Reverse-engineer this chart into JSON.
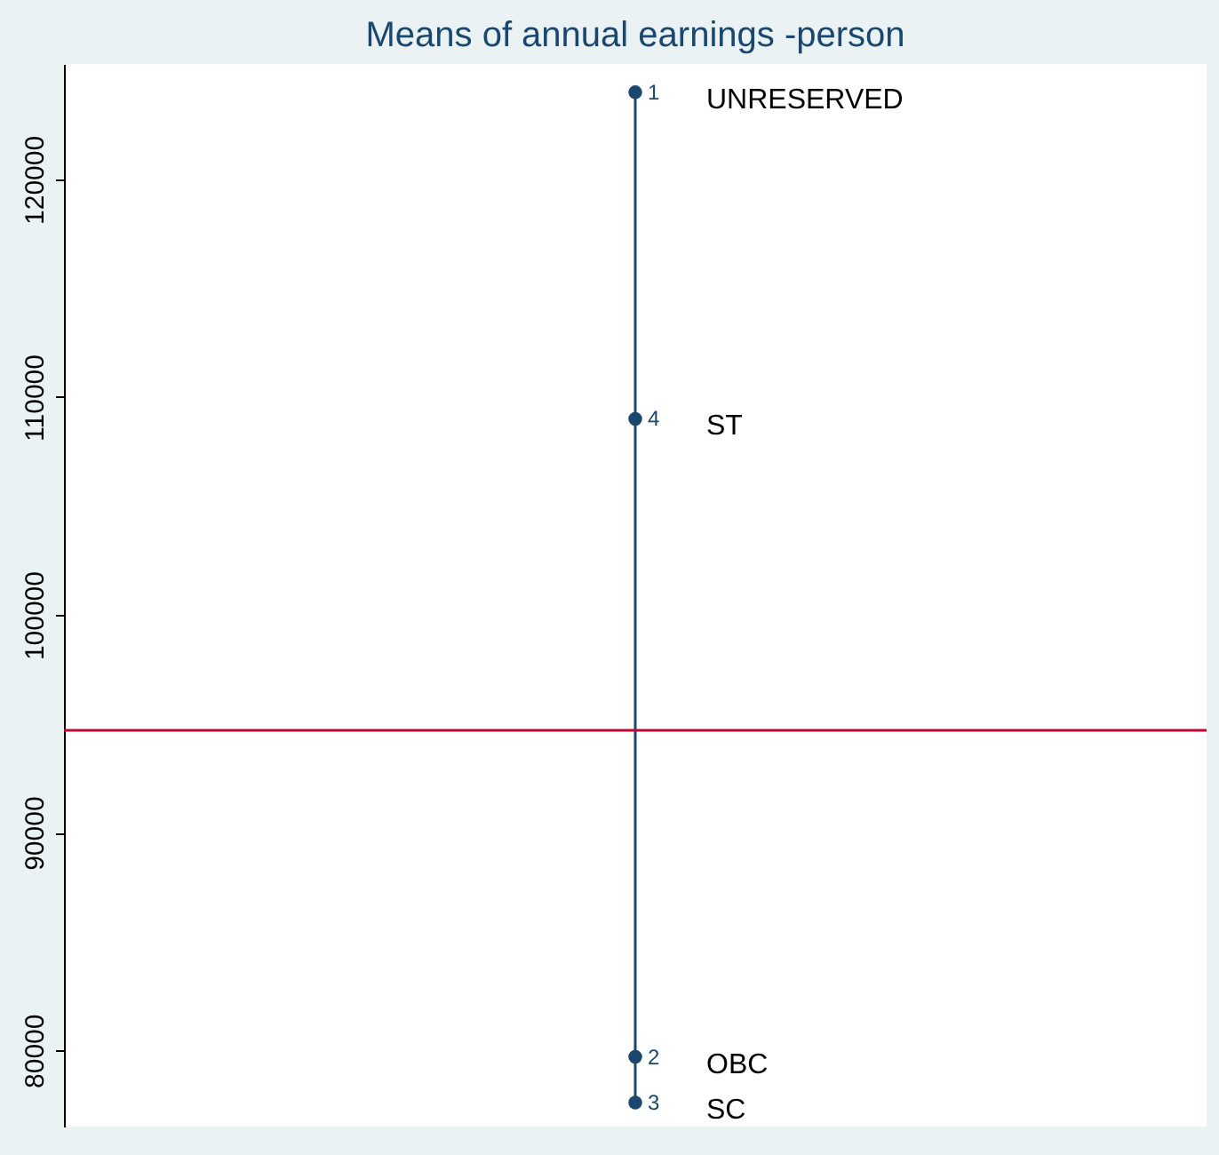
{
  "chart_data": {
    "type": "scatter",
    "title": "Means of annual earnings -person",
    "categories": [
      null
    ],
    "ylim": [
      76500,
      125300
    ],
    "yticks": [
      80000,
      90000,
      100000,
      110000,
      120000
    ],
    "tick_labels": "y",
    "legend": false,
    "marker": "circle",
    "line_style": "solid",
    "series": [
      {
        "name": "UNRESERVED",
        "color": "#1a476f",
        "values": [
          124000
        ]
      },
      {
        "name": "ST",
        "color": "#1a476f",
        "values": [
          109000
        ]
      },
      {
        "name": "OBC",
        "color": "#1a476f",
        "values": [
          79700
        ]
      },
      {
        "name": "SC",
        "color": "#1a476f",
        "values": [
          77600
        ]
      }
    ],
    "annotations": [
      "1",
      "4",
      "2",
      "3"
    ],
    "ref_lines": [
      {
        "axis": "y",
        "value": 94700,
        "color": "#c10534"
      }
    ]
  }
}
